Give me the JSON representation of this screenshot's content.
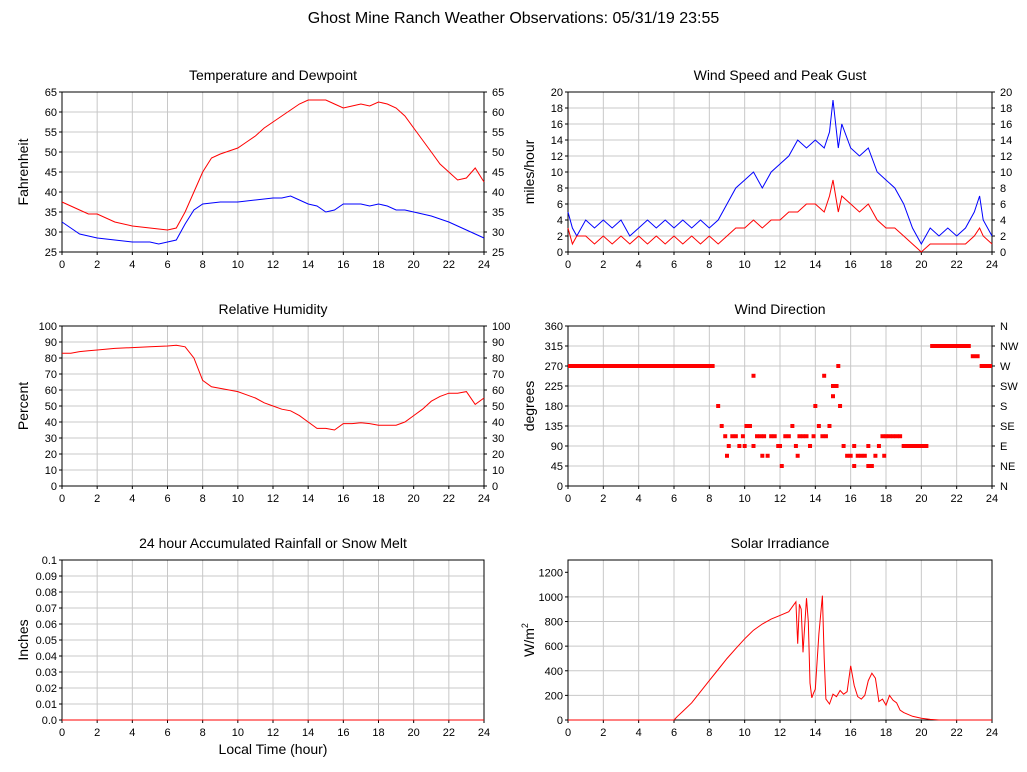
{
  "page": {
    "title": "Ghost Mine Ranch Weather Observations: 05/31/19 23:55",
    "x_label": "Local Time (hour)"
  },
  "colors": {
    "red": "#ff0000",
    "blue": "#0000ff",
    "grid": "#c8c8c8",
    "frame": "#000000"
  },
  "chart_data": [
    {
      "id": "temperature",
      "type": "line",
      "title": "Temperature and Dewpoint",
      "ylabel": "Fahrenheit",
      "xlim": [
        0,
        24
      ],
      "ylim": [
        25,
        65
      ],
      "xticks": [
        0,
        2,
        4,
        6,
        8,
        10,
        12,
        14,
        16,
        18,
        20,
        22,
        24
      ],
      "yticks": [
        25,
        30,
        35,
        40,
        45,
        50,
        55,
        60,
        65
      ],
      "right_ticks": [
        "25",
        "30",
        "35",
        "40",
        "45",
        "50",
        "55",
        "60",
        "65"
      ],
      "grid": true,
      "series": [
        {
          "color": "#ff0000",
          "x": [
            0,
            0.5,
            1,
            1.5,
            2,
            3,
            4,
            5,
            6,
            6.5,
            7,
            7.5,
            8,
            8.5,
            9,
            10,
            10.5,
            11,
            11.5,
            12,
            12.5,
            13,
            13.5,
            14,
            14.5,
            15,
            15.5,
            16,
            16.5,
            17,
            17.5,
            18,
            18.5,
            19,
            19.5,
            20,
            20.5,
            21,
            21.5,
            22,
            22.5,
            23,
            23.5,
            24
          ],
          "y": [
            37.5,
            36.5,
            35.5,
            34.5,
            34.5,
            32.5,
            31.5,
            31,
            30.5,
            31,
            35,
            40,
            45,
            48.5,
            49.5,
            51,
            52.5,
            54,
            56,
            57.5,
            59,
            60.5,
            62,
            63,
            63,
            63,
            62,
            61,
            61.5,
            62,
            61.5,
            62.5,
            62,
            61,
            59,
            56,
            53,
            50,
            47,
            45,
            43,
            43.5,
            46,
            42.5
          ]
        },
        {
          "color": "#0000ff",
          "x": [
            0,
            0.5,
            1,
            1.5,
            2,
            3,
            4,
            5,
            5.5,
            6,
            6.5,
            7,
            7.5,
            8,
            9,
            10,
            11,
            12,
            12.5,
            13,
            13.5,
            14,
            14.5,
            15,
            15.5,
            16,
            16.5,
            17,
            17.5,
            18,
            18.5,
            19,
            19.5,
            20,
            21,
            22,
            23,
            23.5,
            24
          ],
          "y": [
            32.5,
            31,
            29.5,
            29,
            28.5,
            28,
            27.5,
            27.5,
            27,
            27.5,
            28,
            32,
            35.5,
            37,
            37.5,
            37.5,
            38,
            38.5,
            38.5,
            39,
            38,
            37,
            36.5,
            35,
            35.5,
            37,
            37,
            37,
            36.5,
            37,
            36.5,
            35.5,
            35.5,
            35,
            34,
            32.5,
            30.5,
            29.5,
            28.5
          ]
        }
      ]
    },
    {
      "id": "wind-speed",
      "type": "line",
      "title": "Wind Speed and Peak Gust",
      "ylabel": "miles/hour",
      "xlim": [
        0,
        24
      ],
      "ylim": [
        0,
        20
      ],
      "xticks": [
        0,
        2,
        4,
        6,
        8,
        10,
        12,
        14,
        16,
        18,
        20,
        22,
        24
      ],
      "yticks": [
        0,
        2,
        4,
        6,
        8,
        10,
        12,
        14,
        16,
        18,
        20
      ],
      "right_ticks": [
        "0",
        "2",
        "4",
        "6",
        "8",
        "10",
        "12",
        "14",
        "16",
        "18",
        "20"
      ],
      "grid": true,
      "series": [
        {
          "color": "#0000ff",
          "x": [
            0,
            0.25,
            0.5,
            1,
            1.5,
            2,
            2.5,
            3,
            3.5,
            4,
            4.5,
            5,
            5.5,
            6,
            6.5,
            7,
            7.5,
            8,
            8.5,
            9,
            9.5,
            10,
            10.5,
            11,
            11.5,
            12,
            12.5,
            13,
            13.5,
            14,
            14.5,
            14.8,
            15,
            15.3,
            15.5,
            16,
            16.5,
            17,
            17.5,
            18,
            18.5,
            19,
            19.5,
            20,
            20.5,
            21,
            21.5,
            22,
            22.5,
            23,
            23.3,
            23.5,
            24
          ],
          "y": [
            5,
            3,
            2,
            4,
            3,
            4,
            3,
            4,
            2,
            3,
            4,
            3,
            4,
            3,
            4,
            3,
            4,
            3,
            4,
            6,
            8,
            9,
            10,
            8,
            10,
            11,
            12,
            14,
            13,
            14,
            13,
            15,
            19,
            13,
            16,
            13,
            12,
            13,
            10,
            9,
            8,
            6,
            3,
            1,
            3,
            2,
            3,
            2,
            3,
            5,
            7,
            4,
            2
          ]
        },
        {
          "color": "#ff0000",
          "x": [
            0,
            0.25,
            0.5,
            1,
            1.5,
            2,
            2.5,
            3,
            3.5,
            4,
            4.5,
            5,
            5.5,
            6,
            6.5,
            7,
            7.5,
            8,
            8.5,
            9,
            9.5,
            10,
            10.5,
            11,
            11.5,
            12,
            12.5,
            13,
            13.5,
            14,
            14.5,
            14.8,
            15,
            15.3,
            15.5,
            16,
            16.5,
            17,
            17.5,
            18,
            18.5,
            19,
            19.5,
            20,
            20.5,
            21,
            21.5,
            22,
            22.5,
            23,
            23.3,
            23.5,
            24
          ],
          "y": [
            3,
            1,
            2,
            2,
            1,
            2,
            1,
            2,
            1,
            2,
            1,
            2,
            1,
            2,
            1,
            2,
            1,
            2,
            1,
            2,
            3,
            3,
            4,
            3,
            4,
            4,
            5,
            5,
            6,
            6,
            5,
            7,
            9,
            5,
            7,
            6,
            5,
            6,
            4,
            3,
            3,
            2,
            1,
            0,
            1,
            1,
            1,
            1,
            1,
            2,
            3,
            2,
            1
          ]
        }
      ]
    },
    {
      "id": "humidity",
      "type": "line",
      "title": "Relative Humidity",
      "ylabel": "Percent",
      "xlim": [
        0,
        24
      ],
      "ylim": [
        0,
        100
      ],
      "xticks": [
        0,
        2,
        4,
        6,
        8,
        10,
        12,
        14,
        16,
        18,
        20,
        22,
        24
      ],
      "yticks": [
        0,
        10,
        20,
        30,
        40,
        50,
        60,
        70,
        80,
        90,
        100
      ],
      "right_ticks": [
        "0",
        "10",
        "20",
        "30",
        "40",
        "50",
        "60",
        "70",
        "80",
        "90",
        "100"
      ],
      "grid": true,
      "series": [
        {
          "color": "#ff0000",
          "x": [
            0,
            0.5,
            1,
            1.5,
            2,
            3,
            4,
            5,
            6,
            6.5,
            7,
            7.5,
            8,
            8.5,
            9,
            10,
            10.5,
            11,
            11.5,
            12,
            12.5,
            13,
            13.5,
            14,
            14.5,
            15,
            15.5,
            16,
            16.5,
            17,
            17.5,
            18,
            18.5,
            19,
            19.5,
            20,
            20.5,
            21,
            21.5,
            22,
            22.5,
            23,
            23.5,
            24
          ],
          "y": [
            83,
            83,
            84,
            84.5,
            85,
            86,
            86.5,
            87,
            87.5,
            88,
            87,
            80,
            66,
            62,
            61,
            59,
            57,
            55,
            52,
            50,
            48,
            47,
            44,
            40,
            36,
            36,
            35,
            39,
            39,
            39.5,
            39,
            38,
            38,
            38,
            40,
            44,
            48,
            53,
            56,
            58,
            58,
            59,
            51,
            55
          ]
        }
      ]
    },
    {
      "id": "wind-direction",
      "type": "scatter",
      "title": "Wind Direction",
      "ylabel": "degrees",
      "xlim": [
        0,
        24
      ],
      "ylim": [
        0,
        360
      ],
      "xticks": [
        0,
        2,
        4,
        6,
        8,
        10,
        12,
        14,
        16,
        18,
        20,
        22,
        24
      ],
      "yticks": [
        0,
        45,
        90,
        135,
        180,
        225,
        270,
        315,
        360
      ],
      "right_ticks": [
        "N",
        "NE",
        "E",
        "SE",
        "S",
        "SW",
        "W",
        "NW",
        "N"
      ],
      "grid": true,
      "series": [
        {
          "color": "#ff0000",
          "x": [
            8.5,
            8.7,
            8.9,
            9.1,
            9.3,
            9.5,
            9.7,
            9.9,
            10.1,
            10.3,
            10.5,
            10.7,
            10.9,
            11.1,
            11.3,
            11.5,
            11.7,
            11.9,
            12.1,
            12.3,
            12.5,
            12.7,
            12.9,
            13.1,
            13.3,
            13.5,
            13.7,
            13.9,
            14.0,
            14.2,
            14.4,
            14.6,
            14.8,
            15.0,
            15.2,
            15.4,
            15.6,
            15.8,
            16.0,
            16.2,
            16.4,
            16.6,
            16.8,
            17.0,
            17.2,
            17.4,
            17.6,
            17.8,
            18.0,
            18.2,
            18.4,
            18.6,
            18.8,
            19.0,
            10.5,
            14.5,
            15.3,
            12.0,
            9.0,
            10.0,
            11.0,
            13.0,
            15.0,
            16.2,
            17.0,
            17.9
          ],
          "y": [
            180,
            135,
            112,
            90,
            112,
            112,
            90,
            112,
            135,
            135,
            90,
            112,
            112,
            112,
            68,
            112,
            112,
            90,
            45,
            112,
            112,
            135,
            90,
            112,
            112,
            112,
            90,
            112,
            180,
            135,
            112,
            112,
            135,
            225,
            225,
            180,
            90,
            68,
            68,
            45,
            68,
            68,
            68,
            45,
            45,
            68,
            90,
            112,
            112,
            112,
            112,
            112,
            112,
            90,
            248,
            248,
            270,
            90,
            68,
            90,
            68,
            68,
            202,
            90,
            90,
            68
          ]
        }
      ],
      "runs": [
        {
          "x_from": 0,
          "x_to": 8.3,
          "y": 270
        },
        {
          "x_from": 19.0,
          "x_to": 20.4,
          "y": 90
        },
        {
          "x_from": 20.5,
          "x_to": 22.8,
          "y": 315
        },
        {
          "x_from": 22.8,
          "x_to": 23.3,
          "y": 292
        },
        {
          "x_from": 23.3,
          "x_to": 24,
          "y": 270
        }
      ]
    },
    {
      "id": "rainfall",
      "type": "line",
      "title": "24 hour Accumulated Rainfall or Snow Melt",
      "ylabel": "Inches",
      "xlabel": "Local Time (hour)",
      "xlim": [
        0,
        24
      ],
      "ylim": [
        0,
        0.1
      ],
      "xticks": [
        0,
        2,
        4,
        6,
        8,
        10,
        12,
        14,
        16,
        18,
        20,
        22,
        24
      ],
      "yticks": [
        0,
        0.01,
        0.02,
        0.03,
        0.04,
        0.05,
        0.06,
        0.07,
        0.08,
        0.09,
        0.1
      ],
      "ytick_labels": [
        "0.0",
        "0.01",
        "0.02",
        "0.03",
        "0.04",
        "0.05",
        "0.06",
        "0.07",
        "0.08",
        "0.09",
        "0.1"
      ],
      "grid": true,
      "series": [
        {
          "color": "#ff0000",
          "x": [
            0,
            24
          ],
          "y": [
            0,
            0
          ]
        }
      ]
    },
    {
      "id": "solar",
      "type": "line",
      "title": "Solar Irradiance",
      "ylabel": "W/m",
      "ylabel_sup": "2",
      "xlim": [
        0,
        24
      ],
      "ylim": [
        0,
        1300
      ],
      "xticks": [
        0,
        2,
        4,
        6,
        8,
        10,
        12,
        14,
        16,
        18,
        20,
        22,
        24
      ],
      "yticks": [
        0,
        200,
        400,
        600,
        800,
        1000,
        1200
      ],
      "grid": true,
      "series": [
        {
          "color": "#ff0000",
          "x": [
            0,
            6,
            6.2,
            6.5,
            7,
            7.5,
            8,
            8.5,
            9,
            9.5,
            10,
            10.5,
            11,
            11.5,
            12,
            12.5,
            12.9,
            13.0,
            13.1,
            13.2,
            13.3,
            13.5,
            13.6,
            13.7,
            13.8,
            13.9,
            14.0,
            14.2,
            14.4,
            14.5,
            14.6,
            14.8,
            15.0,
            15.2,
            15.4,
            15.6,
            15.8,
            16.0,
            16.2,
            16.4,
            16.6,
            16.8,
            17.0,
            17.2,
            17.4,
            17.6,
            17.8,
            18.0,
            18.2,
            18.4,
            18.6,
            18.8,
            19.0,
            19.5,
            20,
            20.5,
            21,
            24
          ],
          "y": [
            0,
            0,
            30,
            70,
            140,
            230,
            320,
            410,
            500,
            580,
            660,
            730,
            780,
            820,
            850,
            880,
            960,
            620,
            940,
            900,
            550,
            990,
            800,
            300,
            180,
            220,
            250,
            700,
            1010,
            500,
            170,
            130,
            210,
            190,
            240,
            210,
            230,
            440,
            280,
            190,
            170,
            200,
            320,
            380,
            340,
            150,
            170,
            120,
            200,
            160,
            140,
            80,
            60,
            30,
            15,
            5,
            0,
            0
          ]
        }
      ]
    }
  ]
}
